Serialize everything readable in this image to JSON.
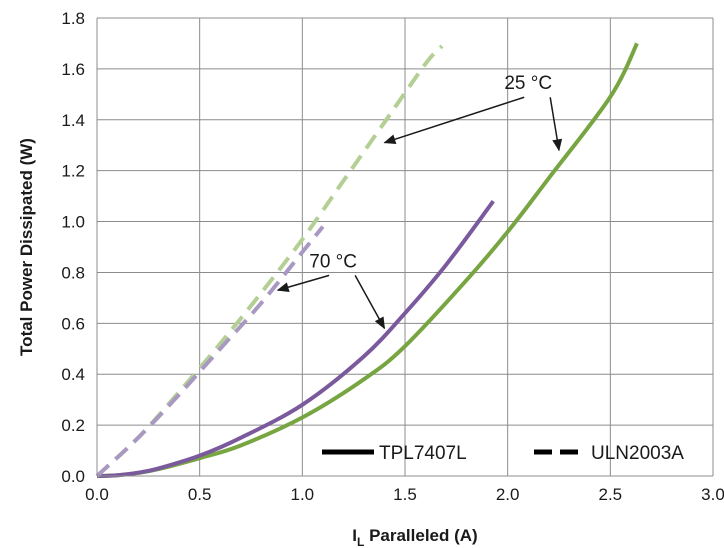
{
  "chart_data": {
    "type": "line",
    "xlabel": {
      "main": "I",
      "sub": "L",
      "rest": " Paralleled (A)"
    },
    "ylabel": "Total Power Dissipated (W)",
    "xlim": [
      0,
      3.0
    ],
    "ylim": [
      0,
      1.8
    ],
    "x_ticks": [
      "0.0",
      "0.5",
      "1.0",
      "1.5",
      "2.0",
      "2.5",
      "3.0"
    ],
    "y_ticks": [
      "0.0",
      "0.2",
      "0.4",
      "0.6",
      "0.8",
      "1.0",
      "1.2",
      "1.4",
      "1.6",
      "1.8"
    ],
    "grid": true,
    "legend_position": "bottom-right",
    "legend": [
      {
        "label": "TPL7407L",
        "style": "solid"
      },
      {
        "label": "ULN2003A",
        "style": "dashed"
      }
    ],
    "series": [
      {
        "name": "TPL7407L",
        "temp": "25 °C",
        "color": "#77a541",
        "dash": false,
        "x": [
          0.0,
          0.1,
          0.2,
          0.3,
          0.5,
          0.7,
          1.0,
          1.3,
          1.5,
          1.8,
          2.0,
          2.2,
          2.5,
          2.63
        ],
        "y": [
          0.0,
          0.003,
          0.012,
          0.027,
          0.07,
          0.12,
          0.23,
          0.38,
          0.51,
          0.77,
          0.96,
          1.17,
          1.49,
          1.7
        ]
      },
      {
        "name": "TPL7407L",
        "temp": "70 °C",
        "color": "#7a5a9d",
        "dash": false,
        "x": [
          0.0,
          0.1,
          0.2,
          0.3,
          0.5,
          0.7,
          1.0,
          1.3,
          1.5,
          1.7,
          1.93
        ],
        "y": [
          0.0,
          0.003,
          0.013,
          0.03,
          0.08,
          0.15,
          0.28,
          0.47,
          0.64,
          0.83,
          1.08
        ]
      },
      {
        "name": "ULN2003A",
        "temp": "25 °C",
        "color": "#b3cf94",
        "dash": true,
        "x": [
          0.0,
          0.2,
          0.4,
          0.6,
          0.8,
          1.0,
          1.2,
          1.4,
          1.6,
          1.68
        ],
        "y": [
          0.0,
          0.15,
          0.33,
          0.52,
          0.72,
          0.93,
          1.16,
          1.39,
          1.62,
          1.69
        ]
      },
      {
        "name": "ULN2003A",
        "temp": "70 °C",
        "color": "#a898c2",
        "dash": true,
        "x": [
          0.0,
          0.2,
          0.4,
          0.6,
          0.8,
          1.0,
          1.1
        ],
        "y": [
          0.0,
          0.15,
          0.32,
          0.5,
          0.68,
          0.88,
          0.98
        ]
      }
    ],
    "annotations": [
      {
        "text": "25 °C",
        "x": 2.1,
        "y": 1.52,
        "arrows_to": [
          [
            1.4,
            1.31
          ],
          [
            2.25,
            1.28
          ]
        ]
      },
      {
        "text": "70 °C",
        "x": 1.15,
        "y": 0.82,
        "arrows_to": [
          [
            0.88,
            0.73
          ],
          [
            1.4,
            0.58
          ]
        ]
      }
    ]
  }
}
